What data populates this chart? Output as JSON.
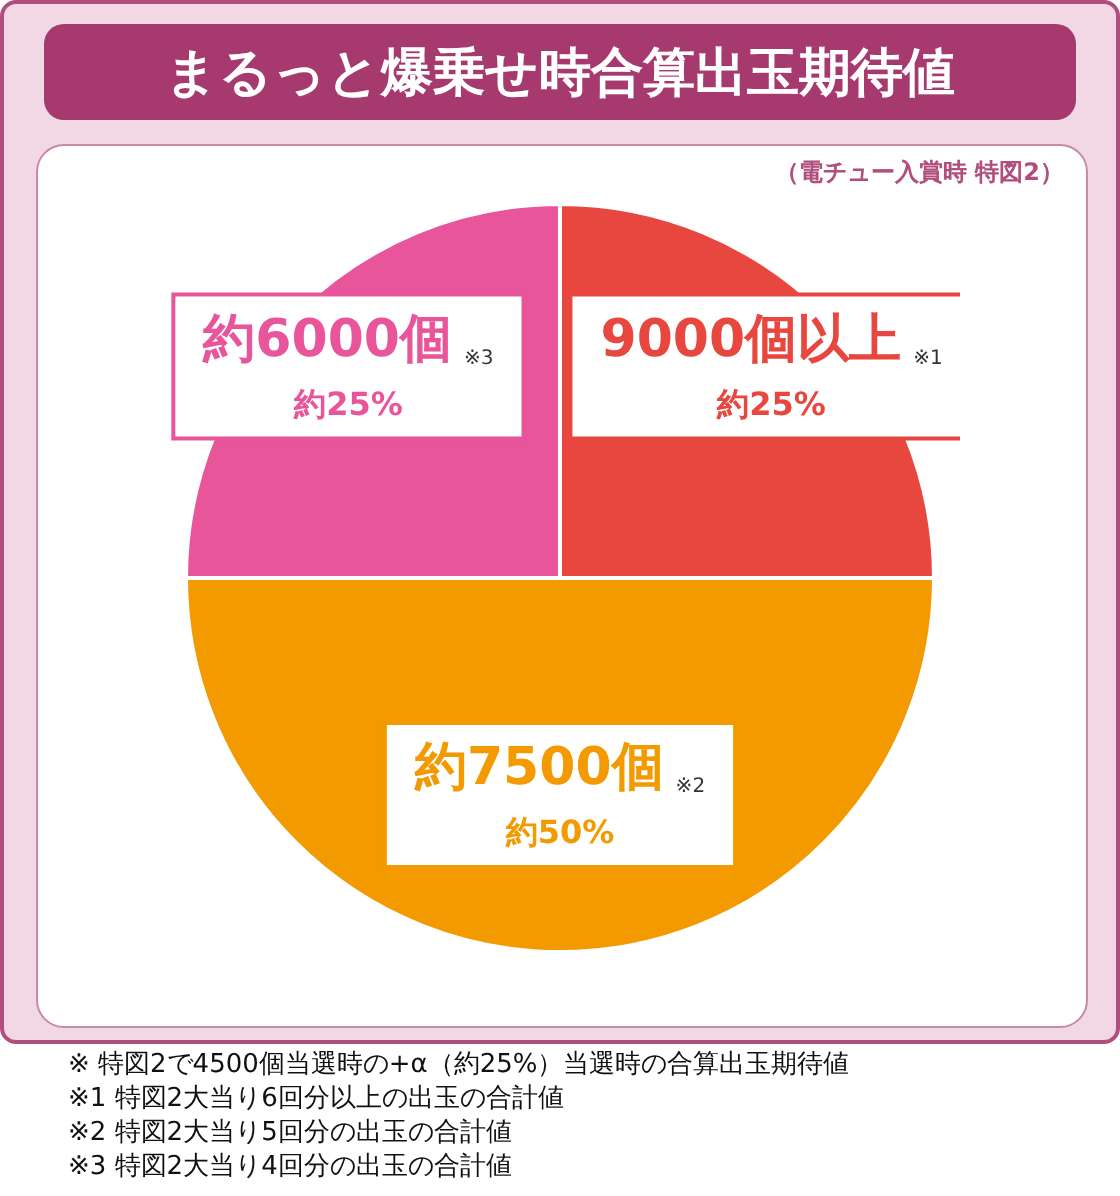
{
  "chart_data": {
    "type": "pie",
    "title": "まるっと爆乗せ時合算出玉期待値",
    "subtitle": "（電チュー入賞時 特図2）",
    "categories": [
      "9000個以上 ※1",
      "約7500個 ※2",
      "約6000個 ※3"
    ],
    "values": [
      25,
      50,
      25
    ],
    "value_labels": [
      "約25%",
      "約50%",
      "約25%"
    ],
    "colors": [
      "#e8473f",
      "#f29a00",
      "#e8559a"
    ],
    "legend": false,
    "annotations": [
      "※ 特図2で4500個当選時の+α（約25%）当選時の合算出玉期待値",
      "※1 特図2大当り6回分以上の出玉の合計値",
      "※2 特図2大当り5回分の出玉の合計値",
      "※3 特図2大当り4回分の出玉の合計値"
    ]
  }
}
